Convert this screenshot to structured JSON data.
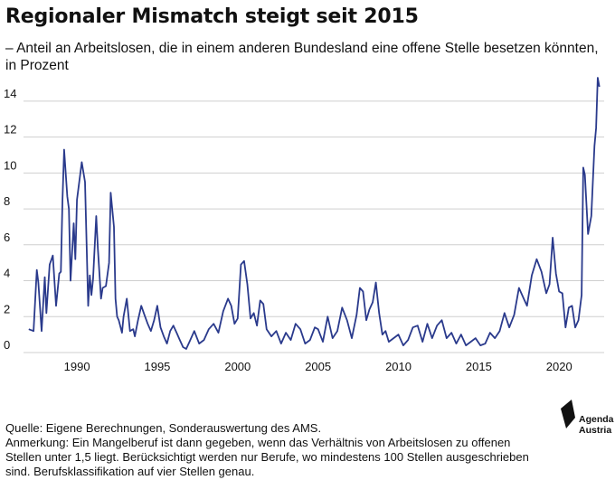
{
  "header": {
    "title": "Regionaler Mismatch steigt seit 2015",
    "subtitle": "– Anteil an Arbeitslosen, die in einem anderen Bundesland eine offene Stelle besetzen könnten, in Prozent"
  },
  "footer": {
    "source": "Quelle: Eigene Berechnungen, Sonderauswertung des AMS.",
    "note": "Anmerkung: Ein Mangelberuf ist dann gegeben, wenn das Verhältnis von Arbeitslosen zu offenen Stellen unter 1,5 liegt. Berücksichtigt werden nur Berufe, wo mindestens 100 Stellen ausgeschrieben sind. Berufsklassifikation auf vier Stellen genau."
  },
  "brand": {
    "logo_icon": "agenda-austria-logo-icon",
    "line1": "Agenda",
    "line2": "Austria"
  },
  "colors": {
    "series": "#2a3a8c",
    "grid": "#cfcfcf"
  },
  "chart_data": {
    "type": "line",
    "title": "Regionaler Mismatch steigt seit 2015",
    "xlabel": "",
    "ylabel": "",
    "xlim": [
      1986.9,
      2022.8
    ],
    "ylim": [
      0,
      15
    ],
    "x_ticks": [
      1990,
      1995,
      2000,
      2005,
      2010,
      2015,
      2020
    ],
    "y_ticks": [
      0,
      2,
      4,
      6,
      8,
      10,
      12,
      14
    ],
    "grid": "horizontal",
    "legend": "none",
    "series": [
      {
        "x": [
          1987.0,
          1987.3,
          1987.5,
          1987.6,
          1987.8,
          1988.0,
          1988.1,
          1988.3,
          1988.5,
          1988.7,
          1988.9,
          1989.0,
          1989.1,
          1989.2,
          1989.4,
          1989.5,
          1989.6,
          1989.8,
          1989.9,
          1990.0,
          1990.3,
          1990.5,
          1990.7,
          1990.8,
          1990.9,
          1991.0,
          1991.2,
          1991.3,
          1991.5,
          1991.6,
          1991.8,
          1992.0,
          1992.1,
          1992.3,
          1992.4,
          1992.5,
          1992.6,
          1992.8,
          1992.9,
          1993.1,
          1993.3,
          1993.5,
          1993.6,
          1993.8,
          1994.0,
          1994.2,
          1994.4,
          1994.6,
          1994.8,
          1995.0,
          1995.2,
          1995.4,
          1995.6,
          1995.8,
          1996.0,
          1996.2,
          1996.4,
          1996.6,
          1996.8,
          1997.0,
          1997.3,
          1997.6,
          1997.9,
          1998.2,
          1998.5,
          1998.8,
          1999.1,
          1999.4,
          1999.6,
          1999.8,
          2000.0,
          2000.2,
          2000.4,
          2000.6,
          2000.8,
          2001.0,
          2001.2,
          2001.4,
          2001.6,
          2001.8,
          2002.1,
          2002.4,
          2002.7,
          2003.0,
          2003.3,
          2003.6,
          2003.9,
          2004.2,
          2004.5,
          2004.8,
          2005.0,
          2005.3,
          2005.6,
          2005.9,
          2006.2,
          2006.5,
          2006.8,
          2007.1,
          2007.4,
          2007.6,
          2007.8,
          2008.0,
          2008.2,
          2008.4,
          2008.6,
          2008.8,
          2009.0,
          2009.2,
          2009.4,
          2009.7,
          2010.0,
          2010.3,
          2010.6,
          2010.9,
          2011.2,
          2011.5,
          2011.8,
          2012.1,
          2012.4,
          2012.7,
          2013.0,
          2013.3,
          2013.6,
          2013.9,
          2014.2,
          2014.5,
          2014.8,
          2015.1,
          2015.4,
          2015.7,
          2016.0,
          2016.3,
          2016.6,
          2016.9,
          2017.2,
          2017.5,
          2017.8,
          2018.0,
          2018.3,
          2018.6,
          2018.9,
          2019.2,
          2019.4,
          2019.6,
          2019.8,
          2020.0,
          2020.2,
          2020.4,
          2020.6,
          2020.8,
          2021.0,
          2021.2,
          2021.4,
          2021.5,
          2021.6,
          2021.8,
          2022.0,
          2022.2,
          2022.3,
          2022.4,
          2022.5
        ],
        "values": [
          1.3,
          1.2,
          4.6,
          3.9,
          1.2,
          4.2,
          2.2,
          4.9,
          5.4,
          2.6,
          4.4,
          4.5,
          8.5,
          11.3,
          8.7,
          8.0,
          4.0,
          7.2,
          5.2,
          8.5,
          10.6,
          9.5,
          2.6,
          4.3,
          3.2,
          4.1,
          7.6,
          5.8,
          3.0,
          3.6,
          3.7,
          5.0,
          8.9,
          7.0,
          3.0,
          2.0,
          1.8,
          1.1,
          2.0,
          3.0,
          1.2,
          1.3,
          0.9,
          1.8,
          2.6,
          2.1,
          1.6,
          1.2,
          1.8,
          2.6,
          1.4,
          0.9,
          0.5,
          1.2,
          1.5,
          1.1,
          0.7,
          0.3,
          0.2,
          0.6,
          1.2,
          0.5,
          0.7,
          1.3,
          1.6,
          1.1,
          2.3,
          3.0,
          2.6,
          1.6,
          1.9,
          4.9,
          5.1,
          3.8,
          1.9,
          2.2,
          1.5,
          2.9,
          2.7,
          1.3,
          0.9,
          1.2,
          0.5,
          1.1,
          0.7,
          1.6,
          1.3,
          0.5,
          0.7,
          1.4,
          1.3,
          0.6,
          2.0,
          0.8,
          1.2,
          2.5,
          1.8,
          0.8,
          2.1,
          3.6,
          3.4,
          1.8,
          2.4,
          2.8,
          3.9,
          2.2,
          1.0,
          1.2,
          0.6,
          0.8,
          1.0,
          0.4,
          0.7,
          1.4,
          1.5,
          0.6,
          1.6,
          0.8,
          1.5,
          1.8,
          0.8,
          1.1,
          0.5,
          1.0,
          0.4,
          0.6,
          0.8,
          0.4,
          0.5,
          1.1,
          0.8,
          1.2,
          2.2,
          1.4,
          2.1,
          3.6,
          3.0,
          2.6,
          4.3,
          5.2,
          4.5,
          3.3,
          3.8,
          6.4,
          4.4,
          3.4,
          3.3,
          1.4,
          2.5,
          2.6,
          1.4,
          1.8,
          3.2,
          10.3,
          9.9,
          6.6,
          7.6,
          11.5,
          12.5,
          15.3,
          14.8
        ]
      }
    ]
  }
}
